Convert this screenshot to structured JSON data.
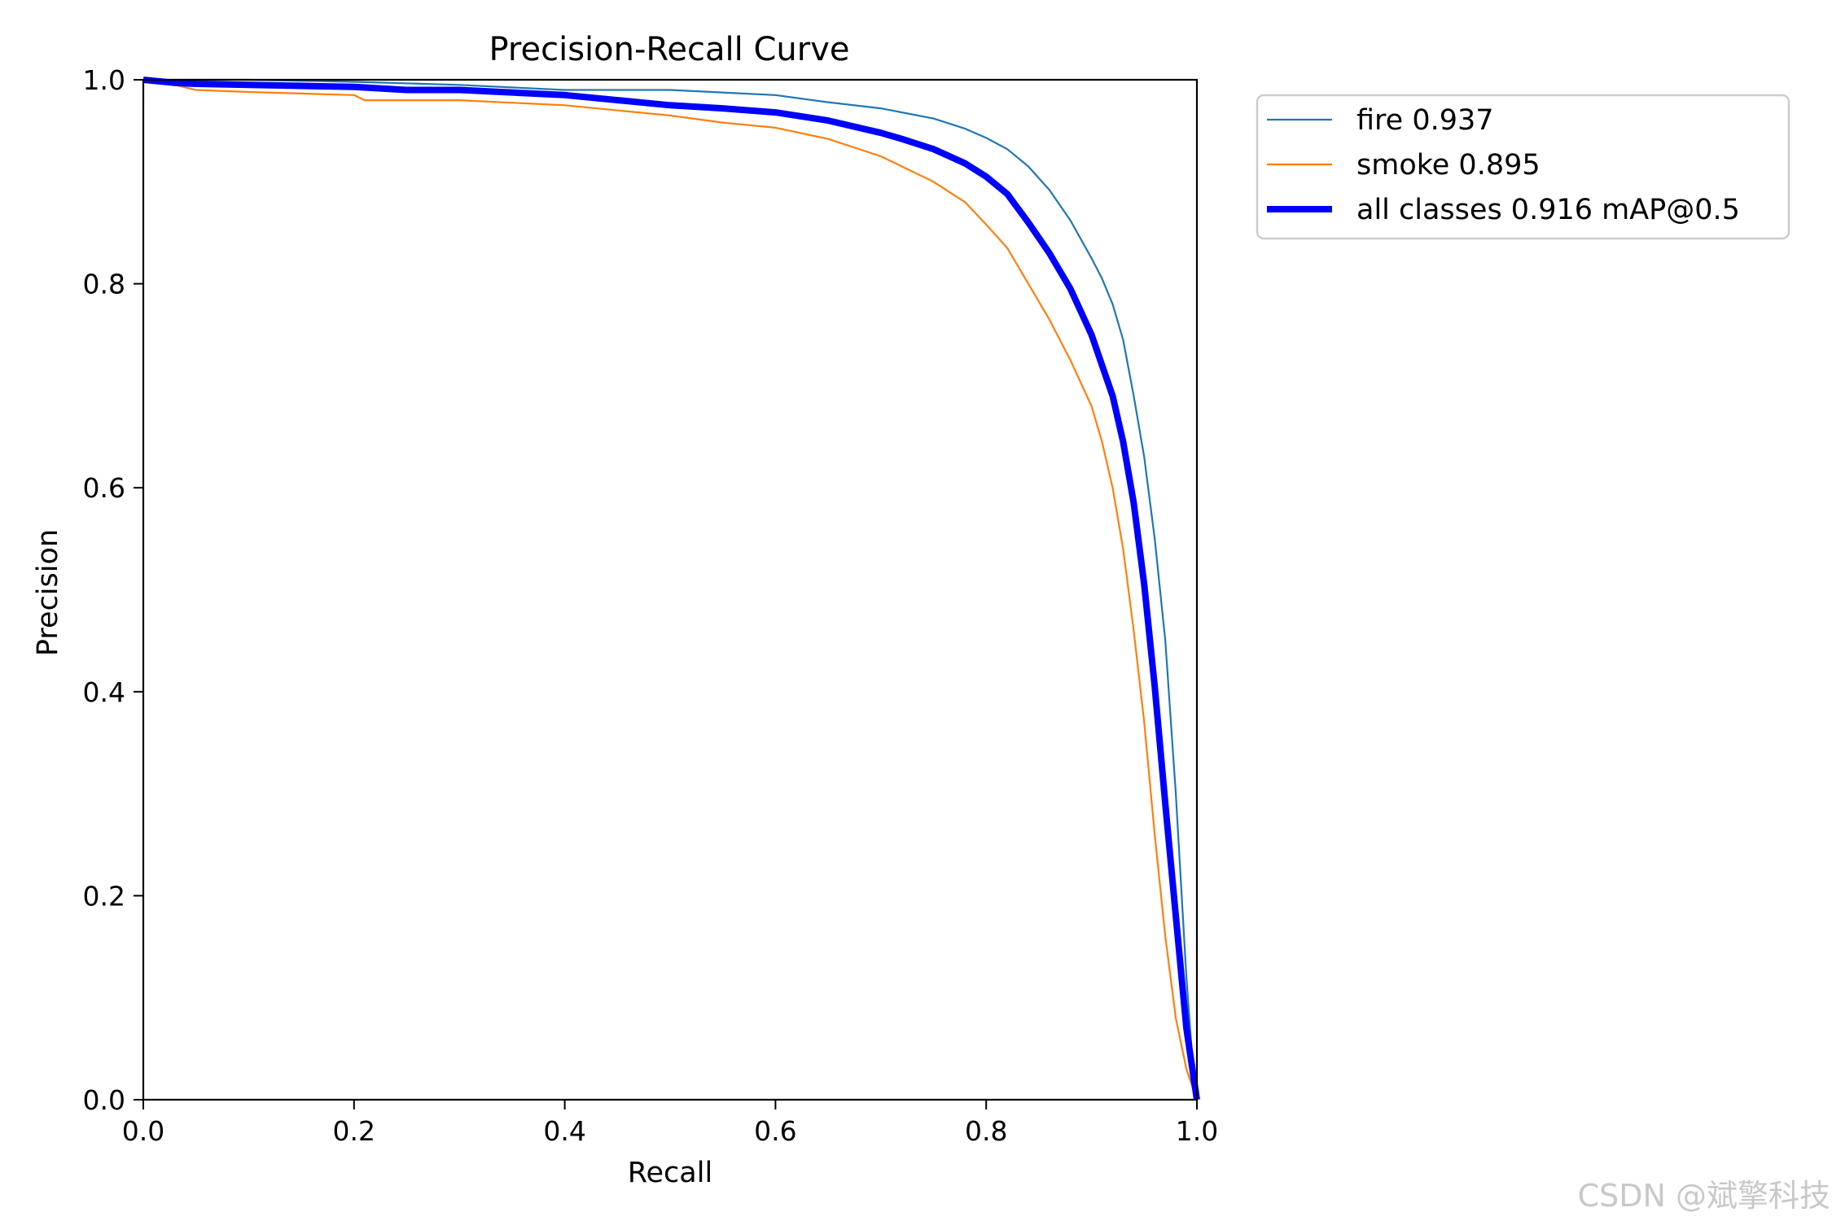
{
  "watermark": "CSDN @斌擎科技",
  "chart_data": {
    "type": "line",
    "title": "Precision-Recall Curve",
    "xlabel": "Recall",
    "ylabel": "Precision",
    "xlim": [
      0,
      1
    ],
    "ylim": [
      0,
      1
    ],
    "x_ticks": [
      "0.0",
      "0.2",
      "0.4",
      "0.6",
      "0.8",
      "1.0"
    ],
    "y_ticks": [
      "0.0",
      "0.2",
      "0.4",
      "0.6",
      "0.8",
      "1.0"
    ],
    "grid": false,
    "legend_position": "outside-top-right",
    "series": [
      {
        "name": "fire 0.937",
        "color": "#1f77b4",
        "emphasis": "thin",
        "x": [
          0.0,
          0.05,
          0.1,
          0.2,
          0.3,
          0.4,
          0.5,
          0.6,
          0.65,
          0.7,
          0.75,
          0.78,
          0.8,
          0.82,
          0.84,
          0.86,
          0.88,
          0.9,
          0.91,
          0.92,
          0.93,
          0.94,
          0.95,
          0.96,
          0.97,
          0.98,
          0.99,
          0.995,
          1.0
        ],
        "y": [
          1.0,
          1.0,
          1.0,
          0.998,
          0.995,
          0.99,
          0.99,
          0.985,
          0.978,
          0.972,
          0.962,
          0.952,
          0.943,
          0.932,
          0.915,
          0.892,
          0.862,
          0.825,
          0.805,
          0.78,
          0.745,
          0.69,
          0.63,
          0.55,
          0.45,
          0.3,
          0.12,
          0.05,
          0.0
        ]
      },
      {
        "name": "smoke 0.895",
        "color": "#ff7f0e",
        "emphasis": "thin",
        "x": [
          0.0,
          0.03,
          0.05,
          0.1,
          0.2,
          0.21,
          0.3,
          0.4,
          0.5,
          0.55,
          0.6,
          0.65,
          0.7,
          0.72,
          0.75,
          0.78,
          0.8,
          0.82,
          0.84,
          0.86,
          0.88,
          0.9,
          0.91,
          0.92,
          0.93,
          0.94,
          0.95,
          0.96,
          0.97,
          0.98,
          0.99,
          1.0
        ],
        "y": [
          1.0,
          0.995,
          0.99,
          0.988,
          0.985,
          0.98,
          0.98,
          0.975,
          0.965,
          0.958,
          0.953,
          0.942,
          0.925,
          0.915,
          0.9,
          0.88,
          0.858,
          0.835,
          0.8,
          0.765,
          0.725,
          0.68,
          0.645,
          0.6,
          0.54,
          0.46,
          0.37,
          0.26,
          0.16,
          0.08,
          0.03,
          0.0
        ]
      },
      {
        "name": "all classes 0.916 mAP@0.5",
        "color": "#0000ff",
        "emphasis": "thick",
        "x": [
          0.0,
          0.03,
          0.05,
          0.1,
          0.2,
          0.25,
          0.3,
          0.4,
          0.5,
          0.55,
          0.6,
          0.65,
          0.7,
          0.72,
          0.75,
          0.78,
          0.8,
          0.82,
          0.84,
          0.86,
          0.88,
          0.9,
          0.91,
          0.92,
          0.93,
          0.94,
          0.95,
          0.96,
          0.97,
          0.98,
          0.99,
          1.0
        ],
        "y": [
          1.0,
          0.997,
          0.996,
          0.995,
          0.993,
          0.99,
          0.99,
          0.985,
          0.975,
          0.972,
          0.968,
          0.96,
          0.948,
          0.942,
          0.932,
          0.918,
          0.905,
          0.888,
          0.86,
          0.83,
          0.795,
          0.75,
          0.72,
          0.69,
          0.645,
          0.585,
          0.505,
          0.405,
          0.29,
          0.18,
          0.07,
          0.0
        ]
      }
    ]
  }
}
